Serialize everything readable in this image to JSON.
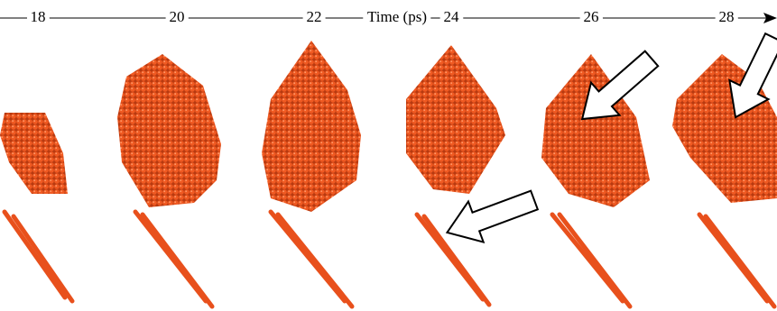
{
  "timeline": {
    "label": "Time (ps)",
    "ticks": [
      "18",
      "20",
      "22",
      "24",
      "26",
      "28"
    ]
  }
}
